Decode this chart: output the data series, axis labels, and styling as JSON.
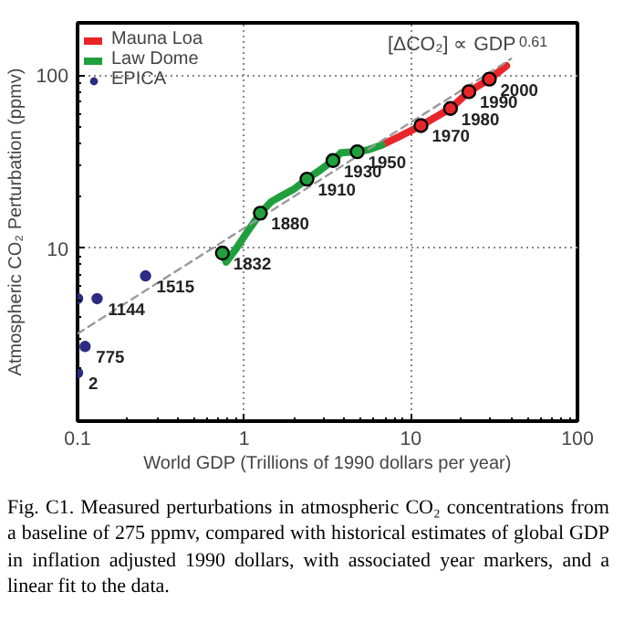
{
  "chart_data": {
    "type": "line",
    "xlabel": "World GDP (Trillions of 1990 dollars per year)",
    "ylabel": "Atmospheric CO₂ Perturbation (ppmv)",
    "log": "xy",
    "grid": true,
    "legend": "top left",
    "xlim": [
      0.1,
      100
    ],
    "xticks": [
      {
        "value": 0.1,
        "label": "0.1"
      },
      {
        "value": 1,
        "label": "1"
      },
      {
        "value": 10,
        "label": "10"
      },
      {
        "value": 100,
        "label": "100"
      }
    ],
    "ylim": [
      1,
      200
    ],
    "yticks": [
      {
        "value": 10,
        "label": "10"
      },
      {
        "value": 100,
        "label": "100"
      }
    ],
    "series": [
      {
        "name": "Mauna Loa",
        "color": "#e8262a",
        "x": [
          6.7,
          8.5,
          11.5,
          17.3,
          22.3,
          29.6,
          37.5
        ],
        "values": [
          39.4,
          44,
          51,
          64,
          80,
          94.6,
          113
        ]
      },
      {
        "name": "Law Dome",
        "color": "#1fa03c",
        "x": [
          0.74,
          0.78,
          0.9,
          1.05,
          1.25,
          1.45,
          1.67,
          2.0,
          2.38,
          2.9,
          3.41,
          3.8,
          4.77,
          5.6,
          6.7
        ],
        "values": [
          9.35,
          8.3,
          10,
          12.5,
          15.9,
          18.5,
          20,
          22,
          25,
          28.5,
          32,
          35.5,
          36,
          37,
          39.4
        ]
      },
      {
        "name": "EPICA",
        "type": "scatter",
        "marker": "circle",
        "color": "#2b2d84",
        "x": [
          0.1,
          0.111,
          0.1,
          0.131,
          0.256
        ],
        "values": [
          1.9,
          2.7,
          5.1,
          5.1,
          6.9
        ]
      },
      {
        "line_style": "dashed",
        "color": "#9a9a9a",
        "x": [
          0.1,
          40
        ],
        "values": [
          3.2,
          124
        ]
      },
      {
        "type": "scatter",
        "marker": "circle",
        "colors": [
          "#1fa03c",
          "#1fa03c",
          "#1fa03c",
          "#1fa03c",
          "#1fa03c",
          "#e8262a",
          "#e8262a",
          "#e8262a",
          "#e8262a"
        ],
        "x": [
          0.74,
          1.25,
          2.38,
          3.41,
          4.77,
          11.5,
          17.3,
          22.3,
          29.6
        ],
        "values": [
          9.35,
          15.9,
          25,
          32,
          36,
          51,
          64,
          80,
          94.6
        ]
      }
    ],
    "annotations": [
      {
        "text": "2",
        "x": 0.1,
        "y": 1.9
      },
      {
        "text": "775",
        "x": 0.111,
        "y": 2.7
      },
      {
        "text": "1144",
        "x": 0.131,
        "y": 5.1
      },
      {
        "text": "1515",
        "x": 0.256,
        "y": 6.9
      },
      {
        "text": "1832",
        "x": 0.74,
        "y": 9.35
      },
      {
        "text": "1880",
        "x": 1.25,
        "y": 15.9
      },
      {
        "text": "1910",
        "x": 2.38,
        "y": 25
      },
      {
        "text": "1930",
        "x": 3.41,
        "y": 32
      },
      {
        "text": "1950",
        "x": 4.77,
        "y": 36
      },
      {
        "text": "1970",
        "x": 11.5,
        "y": 51
      },
      {
        "text": "1980",
        "x": 17.3,
        "y": 64
      },
      {
        "text": "1990",
        "x": 22.3,
        "y": 80
      },
      {
        "text": "2000",
        "x": 29.6,
        "y": 94.6
      },
      "[ΔCO₂] ∝ GDP$^{0.61}$",
      "Fig. C1. Measured perturbations in atmospheric CO₂ concentrations from a baseline of 275 ppmv, compared with historical estimates of global GDP in inflation adjusted 1990 dollars, with associated year markers, and a linear fit to the data."
    ]
  }
}
